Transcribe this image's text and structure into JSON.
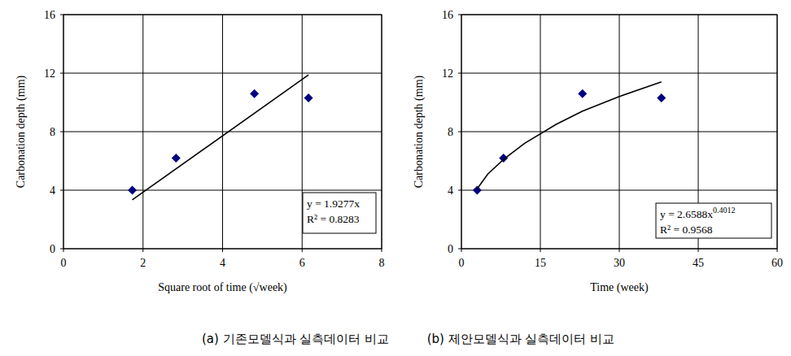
{
  "chart_data": [
    {
      "type": "scatter",
      "x_label": "Square root of time (√week)",
      "y_label": "Carbonation depth (mm)",
      "caption": "(a) 기존모델식과 실측데이터 비교",
      "xlim": [
        0,
        8
      ],
      "xticks": [
        0,
        2,
        4,
        6,
        8
      ],
      "ylim": [
        0,
        16
      ],
      "yticks": [
        0,
        4,
        8,
        12,
        16
      ],
      "grid": true,
      "series": [
        {
          "type": "scatter",
          "marker": "diamond",
          "color": "#000080",
          "x": [
            1.73,
            2.83,
            4.8,
            6.16
          ],
          "values": [
            4.0,
            6.2,
            10.6,
            10.3
          ]
        },
        {
          "type": "line",
          "line_style": "solid",
          "color": "#000000",
          "x": [
            1.73,
            6.16
          ],
          "values": [
            3.34,
            11.88
          ]
        }
      ],
      "annotations": [
        {
          "text": "y = 1.9277x"
        },
        {
          "text": "R² = 0.8283"
        }
      ]
    },
    {
      "type": "scatter",
      "x_label": "Time (week)",
      "y_label": "Carbonation depth (mm)",
      "caption": "(b) 제안모델식과 실측데이터 비교",
      "xlim": [
        0,
        60
      ],
      "xticks": [
        0,
        15,
        30,
        45,
        60
      ],
      "ylim": [
        0,
        16
      ],
      "yticks": [
        0,
        4,
        8,
        12,
        16
      ],
      "grid": true,
      "series": [
        {
          "type": "scatter",
          "marker": "diamond",
          "color": "#000080",
          "x": [
            3,
            8,
            23,
            38
          ],
          "values": [
            4.0,
            6.2,
            10.6,
            10.3
          ]
        },
        {
          "type": "line",
          "line_style": "solid",
          "color": "#000000",
          "x": [
            3,
            5,
            8,
            12,
            18,
            23,
            30,
            38
          ],
          "values": [
            4.1,
            5.1,
            6.1,
            7.2,
            8.5,
            9.4,
            10.4,
            11.4
          ]
        }
      ],
      "annotations": [
        {
          "text": "y = 2.6588x",
          "superscript": "0.4012"
        },
        {
          "text": "R² = 0.9568"
        }
      ]
    }
  ]
}
